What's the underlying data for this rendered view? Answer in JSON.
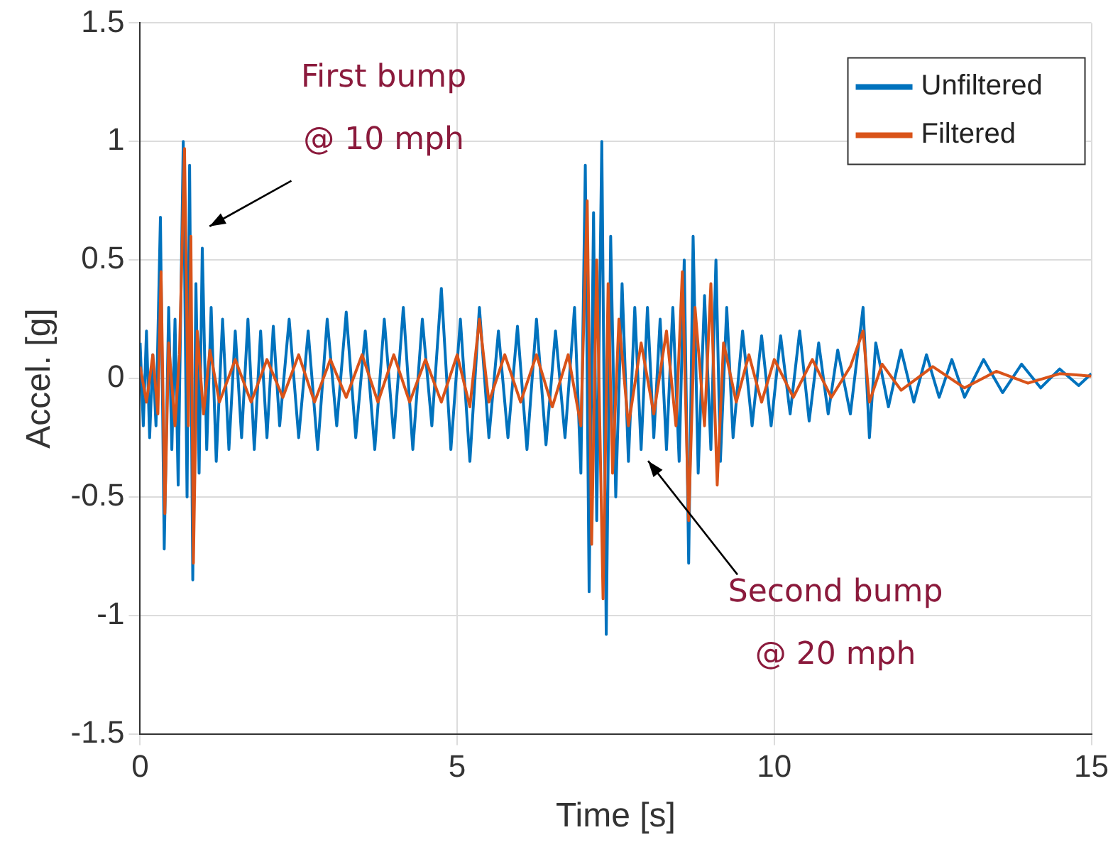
{
  "chart_data": {
    "type": "line",
    "xlabel": "Time [s]",
    "ylabel": "Accel. [g]",
    "xlim": [
      0,
      15
    ],
    "xticks": [
      0,
      5,
      10,
      15
    ],
    "ylim": [
      -1.5,
      1.5
    ],
    "yticks": [
      -1.5,
      -1,
      -0.5,
      0,
      0.5,
      1,
      1.5
    ],
    "grid": true,
    "legend": "top right",
    "marker": "none",
    "line_style": "solid",
    "annotations": [
      "First bump\n@ 10 mph",
      "Second bump\n@ 20 mph"
    ],
    "series": [
      {
        "name": "Unfiltered",
        "color": "#0072bd",
        "x": [
          0,
          0.05,
          0.1,
          0.15,
          0.2,
          0.25,
          0.32,
          0.38,
          0.45,
          0.5,
          0.55,
          0.6,
          0.68,
          0.74,
          0.78,
          0.83,
          0.88,
          0.93,
          0.98,
          1.05,
          1.12,
          1.2,
          1.3,
          1.4,
          1.5,
          1.6,
          1.7,
          1.8,
          1.9,
          2.0,
          2.1,
          2.2,
          2.35,
          2.5,
          2.65,
          2.8,
          2.95,
          3.1,
          3.25,
          3.4,
          3.55,
          3.7,
          3.85,
          4.0,
          4.15,
          4.3,
          4.45,
          4.6,
          4.75,
          4.9,
          5.05,
          5.2,
          5.35,
          5.5,
          5.65,
          5.8,
          5.95,
          6.1,
          6.25,
          6.4,
          6.55,
          6.7,
          6.85,
          6.95,
          7.02,
          7.08,
          7.15,
          7.2,
          7.28,
          7.35,
          7.42,
          7.5,
          7.6,
          7.7,
          7.8,
          7.9,
          8.0,
          8.1,
          8.2,
          8.3,
          8.4,
          8.5,
          8.58,
          8.65,
          8.72,
          8.8,
          8.9,
          9.0,
          9.08,
          9.15,
          9.25,
          9.35,
          9.5,
          9.65,
          9.8,
          9.95,
          10.1,
          10.25,
          10.4,
          10.55,
          10.7,
          10.85,
          11.0,
          11.2,
          11.4,
          11.5,
          11.6,
          11.8,
          12.0,
          12.2,
          12.4,
          12.6,
          12.8,
          13.0,
          13.3,
          13.6,
          13.9,
          14.2,
          14.5,
          14.8,
          15
        ],
        "values": [
          0.15,
          -0.2,
          0.2,
          -0.25,
          0.1,
          -0.2,
          0.68,
          -0.72,
          0.3,
          -0.3,
          0.25,
          -0.45,
          1.0,
          -0.5,
          0.9,
          -0.85,
          0.4,
          -0.4,
          0.55,
          -0.3,
          0.3,
          -0.35,
          0.25,
          -0.3,
          0.2,
          -0.25,
          0.25,
          -0.3,
          0.2,
          -0.25,
          0.22,
          -0.2,
          0.25,
          -0.25,
          0.2,
          -0.3,
          0.25,
          -0.2,
          0.28,
          -0.25,
          0.2,
          -0.3,
          0.25,
          -0.25,
          0.3,
          -0.3,
          0.25,
          -0.2,
          0.38,
          -0.3,
          0.25,
          -0.35,
          0.3,
          -0.25,
          0.2,
          -0.25,
          0.22,
          -0.3,
          0.25,
          -0.28,
          0.2,
          -0.25,
          0.3,
          -0.4,
          0.9,
          -0.9,
          0.7,
          -0.6,
          1.0,
          -1.08,
          0.6,
          -0.5,
          0.4,
          -0.35,
          0.3,
          -0.3,
          0.3,
          -0.25,
          0.25,
          -0.3,
          0.3,
          -0.35,
          0.5,
          -0.78,
          0.6,
          -0.4,
          0.35,
          -0.3,
          0.5,
          -0.35,
          0.3,
          -0.25,
          0.2,
          -0.2,
          0.18,
          -0.2,
          0.18,
          -0.15,
          0.2,
          -0.18,
          0.15,
          -0.15,
          0.12,
          -0.15,
          0.3,
          -0.25,
          0.15,
          -0.12,
          0.12,
          -0.1,
          0.1,
          -0.08,
          0.08,
          -0.08,
          0.08,
          -0.06,
          0.06,
          -0.04,
          0.04,
          -0.03,
          0.02
        ]
      },
      {
        "name": "Filtered",
        "color": "#d95319",
        "x": [
          0,
          0.1,
          0.2,
          0.28,
          0.33,
          0.39,
          0.45,
          0.55,
          0.62,
          0.7,
          0.76,
          0.8,
          0.84,
          0.9,
          1.0,
          1.1,
          1.25,
          1.5,
          1.75,
          2.0,
          2.25,
          2.5,
          2.75,
          3.0,
          3.25,
          3.5,
          3.75,
          4.0,
          4.25,
          4.5,
          4.75,
          5.0,
          5.2,
          5.35,
          5.5,
          5.75,
          6.0,
          6.25,
          6.5,
          6.75,
          6.95,
          7.05,
          7.12,
          7.2,
          7.3,
          7.38,
          7.45,
          7.55,
          7.7,
          7.9,
          8.1,
          8.3,
          8.45,
          8.55,
          8.65,
          8.75,
          8.9,
          9.0,
          9.1,
          9.2,
          9.4,
          9.6,
          9.8,
          10.0,
          10.3,
          10.6,
          10.9,
          11.2,
          11.4,
          11.5,
          11.7,
          12.0,
          12.5,
          13.0,
          13.5,
          14.0,
          14.5,
          15
        ],
        "values": [
          0.05,
          -0.1,
          0.1,
          -0.15,
          0.45,
          -0.57,
          0.15,
          -0.2,
          0.1,
          0.97,
          -0.2,
          0.6,
          -0.78,
          0.2,
          -0.15,
          0.12,
          -0.1,
          0.08,
          -0.1,
          0.08,
          -0.08,
          0.1,
          -0.1,
          0.08,
          -0.08,
          0.1,
          -0.1,
          0.1,
          -0.1,
          0.08,
          -0.1,
          0.1,
          -0.12,
          0.25,
          -0.1,
          0.1,
          -0.1,
          0.1,
          -0.12,
          0.1,
          -0.2,
          0.75,
          -0.7,
          0.5,
          -0.93,
          0.4,
          -0.4,
          0.25,
          -0.2,
          0.15,
          -0.15,
          0.2,
          -0.2,
          0.45,
          -0.6,
          0.3,
          -0.2,
          0.4,
          -0.45,
          0.15,
          -0.1,
          0.1,
          -0.1,
          0.08,
          -0.08,
          0.08,
          -0.08,
          0.05,
          0.2,
          -0.1,
          0.06,
          -0.05,
          0.05,
          -0.04,
          0.03,
          -0.02,
          0.02,
          0.01
        ]
      }
    ]
  }
}
